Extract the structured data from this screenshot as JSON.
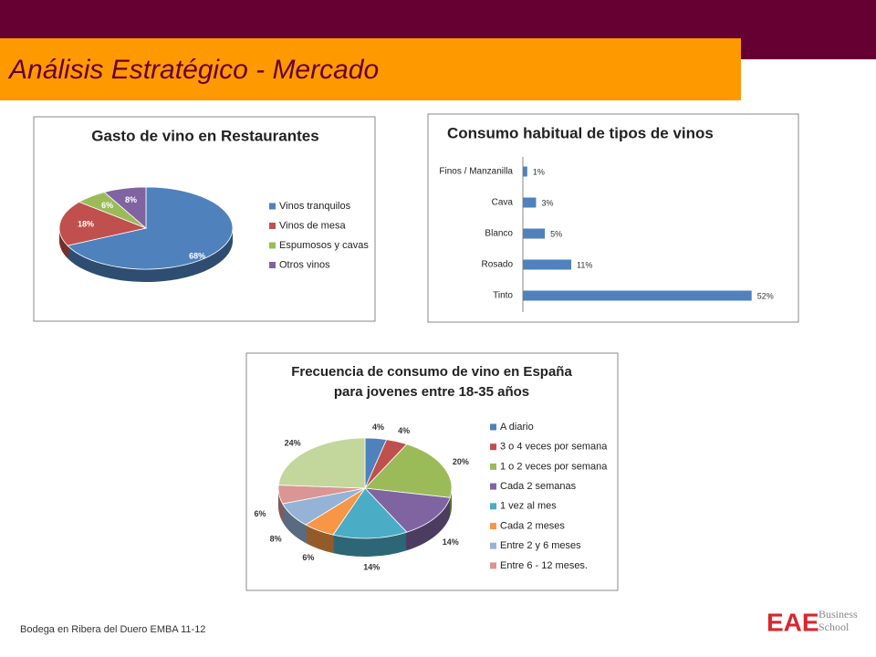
{
  "header": {
    "title": "Análisis Estratégico  - Mercado"
  },
  "chart_data": [
    {
      "type": "pie",
      "title": "Gasto de vino en Restaurantes",
      "categories": [
        "Vinos tranquilos",
        "Vinos de mesa",
        "Espumosos y cavas",
        "Otros vinos"
      ],
      "values": [
        68,
        18,
        6,
        8
      ],
      "value_labels": [
        "68%",
        "18%",
        "6%",
        "8%"
      ],
      "colors": [
        "#4f81bd",
        "#c0504d",
        "#9bbb59",
        "#8064a2"
      ],
      "legend": "right"
    },
    {
      "type": "hbar",
      "title": "Consumo habitual de tipos de vinos",
      "categories": [
        "Finos / Manzanilla",
        "Cava",
        "Blanco",
        "Rosado",
        "Tinto"
      ],
      "values": [
        1,
        3,
        5,
        11,
        52
      ],
      "value_labels": [
        "1%",
        "3%",
        "5%",
        "11%",
        "52%"
      ],
      "color": "#4f81bd",
      "xlim": [
        0,
        56
      ]
    },
    {
      "type": "pie",
      "title": [
        "Frecuencia de consumo de vino en España",
        "para jovenes entre 18-35 años"
      ],
      "categories": [
        "A diario",
        "3 o 4 veces por semana",
        "1 o 2 veces por semana",
        "Cada 2 semanas",
        "1 vez al mes",
        "Cada 2 meses",
        "Entre 2 y 6 meses",
        "Entre 6 - 12 meses.",
        null
      ],
      "values": [
        4,
        4,
        20,
        14,
        14,
        6,
        8,
        6,
        24
      ],
      "value_labels": [
        "4%",
        "4%",
        "20%",
        "14%",
        "14%",
        "6%",
        "8%",
        "6%",
        "24%"
      ],
      "colors": [
        "#4f81bd",
        "#c0504d",
        "#9bbb59",
        "#8064a2",
        "#4bacc6",
        "#f79646",
        "#95b3d7",
        "#d99694",
        "#c3d69b"
      ],
      "legend": "right"
    }
  ],
  "footer": {
    "text": "Bodega en Ribera del Duero EMBA 11-12",
    "logo": "EAE",
    "logo_sub": [
      "Business",
      "School"
    ]
  }
}
